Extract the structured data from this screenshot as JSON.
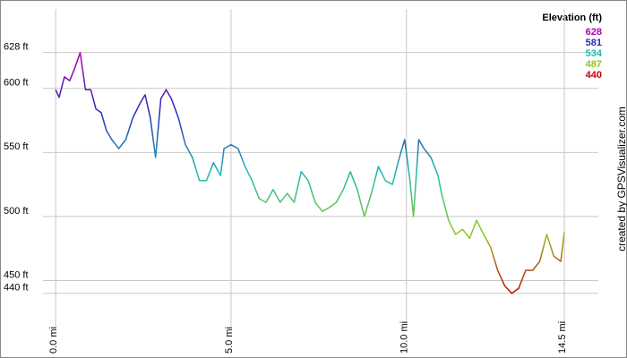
{
  "chart_data": {
    "type": "line",
    "x": [
      0.0,
      0.1,
      0.25,
      0.4,
      0.55,
      0.7,
      0.85,
      1.0,
      1.15,
      1.3,
      1.45,
      1.6,
      1.8,
      2.0,
      2.2,
      2.4,
      2.55,
      2.7,
      2.85,
      3.0,
      3.15,
      3.3,
      3.5,
      3.7,
      3.9,
      4.1,
      4.3,
      4.5,
      4.7,
      4.8,
      5.0,
      5.2,
      5.4,
      5.6,
      5.8,
      6.0,
      6.2,
      6.4,
      6.6,
      6.8,
      7.0,
      7.2,
      7.4,
      7.6,
      7.8,
      8.0,
      8.2,
      8.4,
      8.6,
      8.8,
      9.0,
      9.2,
      9.4,
      9.6,
      9.8,
      9.95,
      10.1,
      10.2,
      10.35,
      10.5,
      10.7,
      10.9,
      11.0,
      11.2,
      11.4,
      11.6,
      11.8,
      12.0,
      12.2,
      12.4,
      12.6,
      12.8,
      13.0,
      13.2,
      13.4,
      13.6,
      13.8,
      14.0,
      14.2,
      14.4,
      14.5
    ],
    "series": [
      {
        "name": "Elevation (ft)",
        "values": [
          599,
          593,
          609,
          606,
          616,
          628,
          599,
          599,
          584,
          581,
          567,
          560,
          553,
          560,
          577,
          588,
          595,
          577,
          546,
          592,
          599,
          592,
          577,
          556,
          546,
          528,
          528,
          542,
          532,
          553,
          556,
          553,
          539,
          528,
          514,
          511,
          521,
          511,
          518,
          511,
          535,
          528,
          511,
          504,
          507,
          511,
          521,
          535,
          521,
          500,
          518,
          539,
          528,
          525,
          546,
          560,
          528,
          500,
          560,
          553,
          546,
          532,
          518,
          497,
          486,
          490,
          483,
          497,
          486,
          476,
          458,
          446,
          440,
          444,
          458,
          458,
          465,
          486,
          469,
          465,
          488
        ]
      }
    ],
    "legend": {
      "title": "Elevation (ft)",
      "entries": [
        {
          "value": 628,
          "color": "#b000b0"
        },
        {
          "value": 581,
          "color": "#2a2ab8"
        },
        {
          "value": 534,
          "color": "#20b8b0"
        },
        {
          "value": 487,
          "color": "#90c820"
        },
        {
          "value": 440,
          "color": "#c80000"
        }
      ]
    },
    "xlim": [
      -0.36,
      15.47
    ],
    "ylim": [
      414,
      662
    ],
    "xticks": [
      {
        "value": 0,
        "label": "0.0 mi"
      },
      {
        "value": 5,
        "label": "5.0 mi"
      },
      {
        "value": 10,
        "label": "10.0 mi"
      },
      {
        "value": 14.5,
        "label": "14.5 mi"
      }
    ],
    "yticks": [
      {
        "value": 440,
        "label": "440 ft"
      },
      {
        "value": 450,
        "label": "450 ft"
      },
      {
        "value": 500,
        "label": "500 ft"
      },
      {
        "value": 550,
        "label": "550 ft"
      },
      {
        "value": 600,
        "label": "600 ft"
      },
      {
        "value": 628,
        "label": "628 ft"
      }
    ],
    "grid": true,
    "credit": "created by GPSVisualizer.com"
  }
}
